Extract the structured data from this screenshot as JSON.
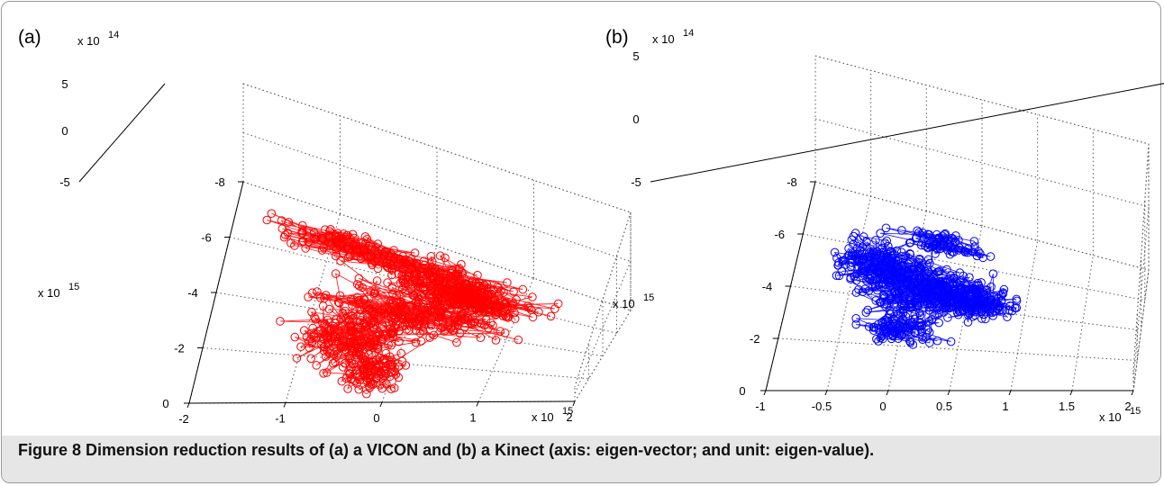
{
  "caption": {
    "bold": "Figure 8 Dimension reduction results of (a) a VICON and (b) a Kinect (axis: eigen-vector; and unit: eigen-value).",
    "rest": ""
  },
  "chart_data": [
    {
      "type": "scatter",
      "panel": "(a)",
      "color": "#ff0000",
      "marker": "circle-line",
      "z_exponent": "x 10",
      "z_exp_power": "14",
      "y_exponent": "x 10",
      "y_exp_power": "15",
      "x_exponent": "x 10",
      "x_exp_power": "15",
      "z_ticks": [
        "5",
        "0",
        "-5"
      ],
      "y_ticks": [
        "-8",
        "-6",
        "-4",
        "-2",
        "0"
      ],
      "x_ticks": [
        "-2",
        "-1",
        "0",
        "1",
        "2"
      ],
      "x_range": [
        -2,
        2
      ],
      "y_range": [
        -8,
        0
      ],
      "z_range": [
        -5,
        5
      ],
      "grid": true,
      "clusters": [
        {
          "x": 0.3,
          "y": -6.2,
          "spread": [
            0.6,
            0.9
          ],
          "n": 260
        },
        {
          "x": -0.6,
          "y": -6.8,
          "spread": [
            0.9,
            0.5
          ],
          "n": 160
        },
        {
          "x": 0.0,
          "y": -4.6,
          "spread": [
            0.8,
            0.9
          ],
          "n": 200
        },
        {
          "x": -0.5,
          "y": -3.0,
          "spread": [
            0.5,
            1.2
          ],
          "n": 180
        },
        {
          "x": -0.2,
          "y": -1.6,
          "spread": [
            0.3,
            0.9
          ],
          "n": 90
        },
        {
          "x": 0.55,
          "y": -5.8,
          "spread": [
            0.25,
            0.5
          ],
          "n": 120
        }
      ]
    },
    {
      "type": "scatter",
      "panel": "(b)",
      "color": "#0000ff",
      "marker": "circle-line",
      "z_exponent": "x 10",
      "z_exp_power": "14",
      "y_exponent": "x 10",
      "y_exp_power": "15",
      "x_exponent": "x 10",
      "x_exp_power": "15",
      "z_ticks": [
        "5",
        "0",
        "-5"
      ],
      "y_ticks": [
        "-8",
        "-6",
        "-4",
        "-2",
        "0"
      ],
      "x_ticks": [
        "-1",
        "-0.5",
        "0",
        "0.5",
        "1",
        "1.5",
        "2"
      ],
      "x_range": [
        -1,
        2
      ],
      "y_range": [
        -8,
        0
      ],
      "z_range": [
        -5,
        5
      ],
      "grid": true,
      "clusters": [
        {
          "x": 0.1,
          "y": -4.6,
          "spread": [
            0.45,
            1.0
          ],
          "n": 330
        },
        {
          "x": -0.35,
          "y": -5.4,
          "spread": [
            0.3,
            0.8
          ],
          "n": 140
        },
        {
          "x": 0.55,
          "y": -4.4,
          "spread": [
            0.3,
            0.8
          ],
          "n": 160
        },
        {
          "x": 0.0,
          "y": -2.8,
          "spread": [
            0.25,
            0.6
          ],
          "n": 90
        },
        {
          "x": 0.2,
          "y": -6.8,
          "spread": [
            0.35,
            0.4
          ],
          "n": 70
        }
      ]
    }
  ]
}
